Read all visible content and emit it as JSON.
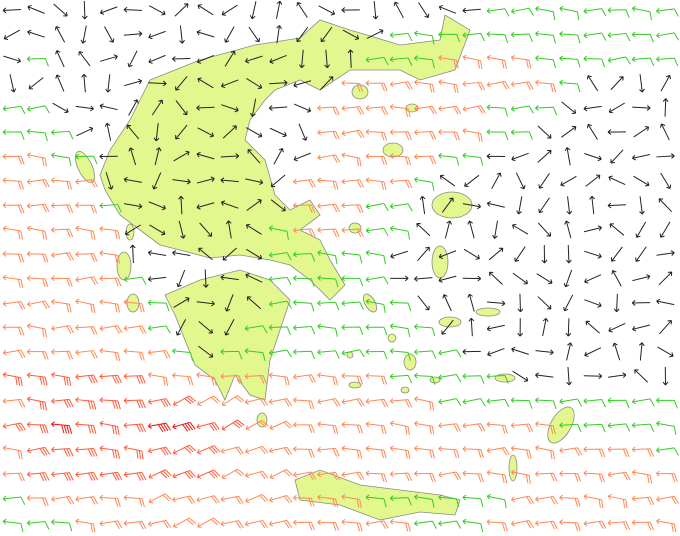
{
  "map": {
    "land_color": "#e2f88e",
    "border_color": "#8a8a8a",
    "barb_colors": {
      "0": "#222222",
      "1": "#33cc22",
      "2": "#ff8855",
      "3": "#ff5a3c",
      "4": "#ee1111"
    },
    "wind_direction_default": "east",
    "wind_barb_grid": [
      "0000000000000000000011111111",
      "0000000000000000111111111111",
      "0100000000000001112222111111",
      "0000000000000022222222210000",
      "1100000000000222222211100000",
      "1110000000000222222211000000",
      "2211000000000222221100000000",
      "2222000000002222210000000000",
      "2222100000002221100000000000",
      "2222200000012221100000000000",
      "2222200000011111000000000000",
      "2222210000011111000000000000",
      "2222221000011111100000000000",
      "2222221000111111110000000000",
      "2222222101111111111000000000",
      "3333332222222222111110000000",
      "2333333322222222221111111111",
      "3343334433222222222222211111",
      "2333333332222222222222222221",
      "2333333332222222222222222222",
      "1222222222222221111112222222",
      "1112222222222222211122222222"
    ]
  }
}
